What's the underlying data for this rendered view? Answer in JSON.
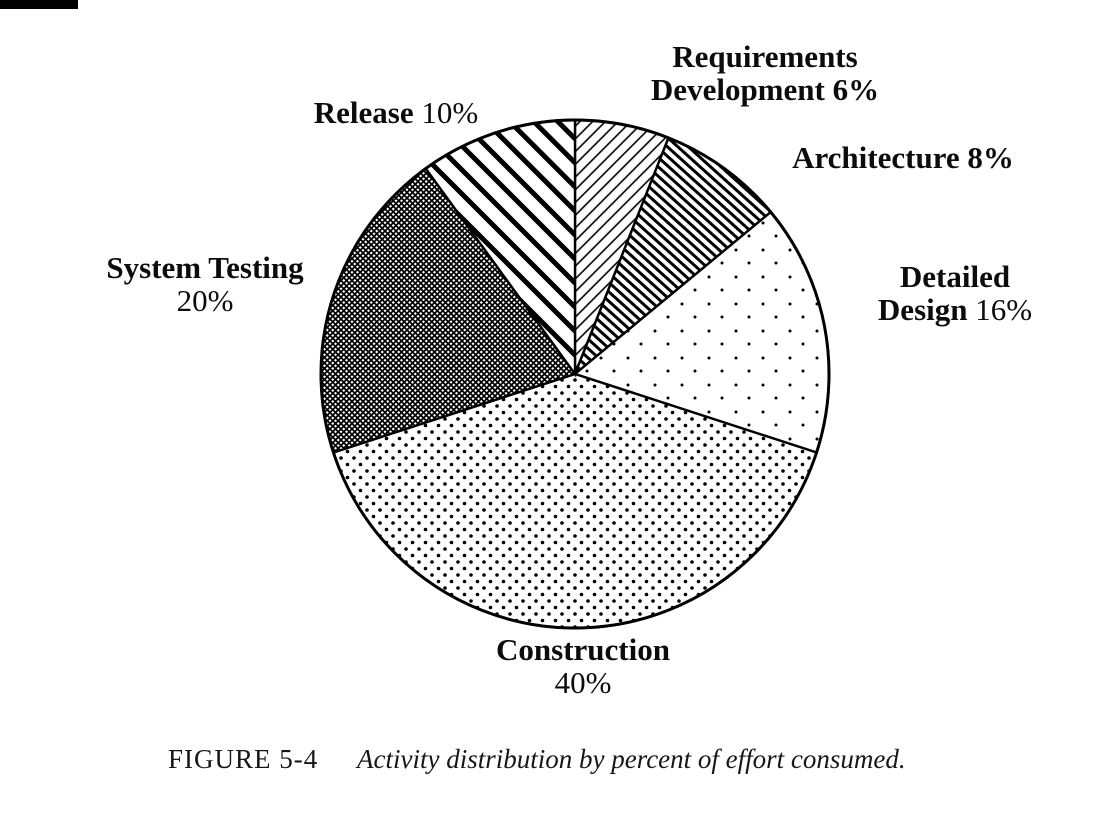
{
  "figure": {
    "caption_prefix": "FIGURE 5-4",
    "caption_text": "Activity distribution by percent of effort consumed."
  },
  "chart_data": {
    "type": "pie",
    "title": "Activity distribution by percent of effort consumed",
    "unit": "percent",
    "start_angle_deg": -90,
    "direction": "clockwise",
    "total": 100,
    "slices": [
      {
        "label": "Requirements Development",
        "value": 6,
        "pattern": "hatch-light",
        "texture": "thin diagonal hatch"
      },
      {
        "label": "Architecture",
        "value": 8,
        "pattern": "hatch-dense",
        "texture": "thick dense diagonal hatch"
      },
      {
        "label": "Detailed Design",
        "value": 16,
        "pattern": "dots-sparse",
        "texture": "sparse dots"
      },
      {
        "label": "Construction",
        "value": 40,
        "pattern": "dots-dense",
        "texture": "dense stipple dots"
      },
      {
        "label": "System Testing",
        "value": 20,
        "pattern": "crosshatch-dark",
        "texture": "dark crosshatch"
      },
      {
        "label": "Release",
        "value": 10,
        "pattern": "stripes-wide",
        "texture": "wide diagonal stripes"
      }
    ],
    "labels": {
      "requirements": {
        "line1": "Requirements",
        "line2": "Development 6%"
      },
      "architecture": {
        "text": "Architecture 8%"
      },
      "detailed_design": {
        "line1": "Detailed",
        "line2_name": "Design",
        "line2_pct": "16%"
      },
      "construction": {
        "line1": "Construction",
        "line2": "40%"
      },
      "system_testing": {
        "line1": "System Testing",
        "line2": "20%"
      },
      "release": {
        "name": "Release",
        "pct": "10%"
      }
    }
  },
  "colors": {
    "ink": "#000000",
    "background": "#ffffff"
  }
}
